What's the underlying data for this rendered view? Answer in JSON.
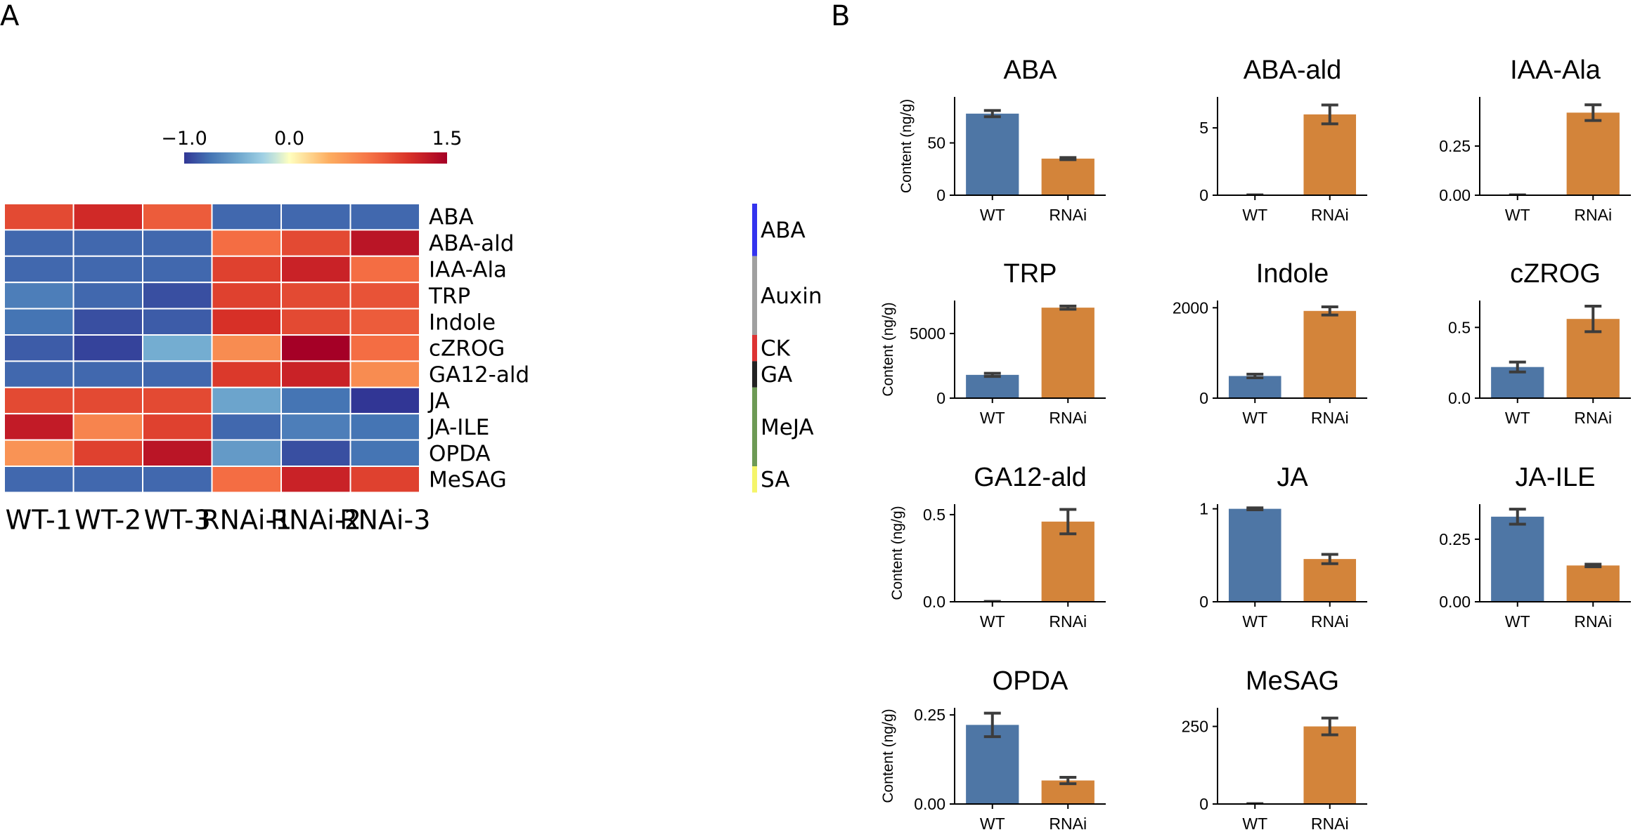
{
  "panels": {
    "a": "A",
    "b": "B"
  },
  "colors": {
    "wt": "#4e76a5",
    "rnai": "#d3843a",
    "err": "#3c3c3c"
  },
  "chart_data": [
    {
      "type": "heatmap",
      "columns": [
        "WT-1",
        "WT-2",
        "WT-3",
        "RNAi-1",
        "RNAi-2",
        "RNAi-3"
      ],
      "rows": [
        "ABA",
        "ABA-ald",
        "IAA-Ala",
        "TRP",
        "Indole",
        "cZROG",
        "GA12-ald",
        "JA",
        "JA-ILE",
        "OPDA",
        "MeSAG"
      ],
      "values": [
        [
          1.0,
          1.2,
          0.9,
          -0.8,
          -0.8,
          -0.8
        ],
        [
          -0.8,
          -0.8,
          -0.8,
          0.8,
          1.0,
          1.35
        ],
        [
          -0.8,
          -0.8,
          -0.8,
          1.05,
          1.25,
          0.8
        ],
        [
          -0.7,
          -0.8,
          -0.9,
          1.05,
          1.0,
          0.95
        ],
        [
          -0.75,
          -0.9,
          -0.85,
          1.15,
          1.0,
          0.9
        ],
        [
          -0.85,
          -0.95,
          -0.45,
          0.6,
          1.5,
          0.8
        ],
        [
          -0.8,
          -0.8,
          -0.8,
          1.1,
          1.25,
          0.6
        ],
        [
          1.0,
          1.0,
          1.0,
          -0.5,
          -0.75,
          -1.0
        ],
        [
          1.3,
          0.65,
          1.05,
          -0.8,
          -0.7,
          -0.75
        ],
        [
          0.55,
          1.05,
          1.35,
          -0.55,
          -0.9,
          -0.75
        ],
        [
          -0.8,
          -0.8,
          -0.8,
          0.8,
          1.25,
          1.05
        ]
      ],
      "colorbar": {
        "vmin": -1.0,
        "vmax": 1.5,
        "ticks": [
          "−1.0",
          "0.0",
          "1.5"
        ],
        "tick_values": [
          -1.0,
          0.0,
          1.5
        ],
        "colormap": "RdYlBu_r"
      },
      "groups": [
        {
          "name": "ABA",
          "rows": [
            0,
            1
          ],
          "color": "#3333ee"
        },
        {
          "name": "Auxin",
          "rows": [
            2,
            4
          ],
          "color": "#a0a0a0"
        },
        {
          "name": "CK",
          "rows": [
            5,
            5
          ],
          "color": "#dd3333"
        },
        {
          "name": "GA",
          "rows": [
            6,
            6
          ],
          "color": "#222222"
        },
        {
          "name": "MeJA",
          "rows": [
            7,
            9
          ],
          "color": "#6d9a55"
        },
        {
          "name": "SA",
          "rows": [
            10,
            10
          ],
          "color": "#f5f56a"
        }
      ]
    },
    {
      "type": "bar",
      "categories": [
        "WT",
        "RNAi"
      ],
      "ylabel": "Content (ng/g)",
      "subplots": [
        {
          "title": "ABA",
          "values": [
            78,
            35
          ],
          "errors": [
            3,
            1
          ],
          "ylim": [
            0,
            94
          ],
          "ticks": [
            {
              "v": 0,
              "l": "0"
            },
            {
              "v": 50,
              "l": "50"
            }
          ],
          "show_ylabel": true
        },
        {
          "title": "ABA-ald",
          "values": [
            0,
            6.0
          ],
          "errors": [
            0,
            0.7
          ],
          "ylim": [
            0,
            7.3
          ],
          "ticks": [
            {
              "v": 0,
              "l": "0"
            },
            {
              "v": 5,
              "l": "5"
            }
          ],
          "show_ylabel": false
        },
        {
          "title": "IAA-Ala",
          "values": [
            0,
            0.42
          ],
          "errors": [
            0,
            0.04
          ],
          "ylim": [
            0,
            0.5
          ],
          "ticks": [
            {
              "v": 0,
              "l": "0.00"
            },
            {
              "v": 0.25,
              "l": "0.25"
            }
          ],
          "show_ylabel": false
        },
        {
          "title": "TRP",
          "values": [
            1800,
            7000
          ],
          "errors": [
            120,
            120
          ],
          "ylim": [
            0,
            7550
          ],
          "ticks": [
            {
              "v": 0,
              "l": "0"
            },
            {
              "v": 5000,
              "l": "5000"
            }
          ],
          "show_ylabel": true
        },
        {
          "title": "Indole",
          "values": [
            490,
            1930
          ],
          "errors": [
            40,
            90
          ],
          "ylim": [
            0,
            2160
          ],
          "ticks": [
            {
              "v": 0,
              "l": "0"
            },
            {
              "v": 2000,
              "l": "2000"
            }
          ],
          "show_ylabel": false
        },
        {
          "title": "cZROG",
          "values": [
            0.22,
            0.56
          ],
          "errors": [
            0.035,
            0.09
          ],
          "ylim": [
            0,
            0.69
          ],
          "ticks": [
            {
              "v": 0,
              "l": "0.0"
            },
            {
              "v": 0.5,
              "l": "0.5"
            }
          ],
          "show_ylabel": false
        },
        {
          "title": "GA12-ald",
          "values": [
            0,
            0.46
          ],
          "errors": [
            0,
            0.07
          ],
          "ylim": [
            0,
            0.56
          ],
          "ticks": [
            {
              "v": 0,
              "l": "0.0"
            },
            {
              "v": 0.5,
              "l": "0.5"
            }
          ],
          "show_ylabel": true
        },
        {
          "title": "JA",
          "values": [
            1.0,
            0.46
          ],
          "errors": [
            0.01,
            0.05
          ],
          "ylim": [
            0,
            1.05
          ],
          "ticks": [
            {
              "v": 0,
              "l": "0"
            },
            {
              "v": 1,
              "l": "1"
            }
          ],
          "show_ylabel": false
        },
        {
          "title": "JA-ILE",
          "values": [
            0.34,
            0.145
          ],
          "errors": [
            0.03,
            0.005
          ],
          "ylim": [
            0,
            0.39
          ],
          "ticks": [
            {
              "v": 0,
              "l": "0.00"
            },
            {
              "v": 0.25,
              "l": "0.25"
            }
          ],
          "show_ylabel": false
        },
        {
          "title": "OPDA",
          "values": [
            0.222,
            0.066
          ],
          "errors": [
            0.033,
            0.009
          ],
          "ylim": [
            0,
            0.27
          ],
          "ticks": [
            {
              "v": 0,
              "l": "0.00"
            },
            {
              "v": 0.25,
              "l": "0.25"
            }
          ],
          "show_ylabel": true
        },
        {
          "title": "MeSAG",
          "values": [
            0,
            250
          ],
          "errors": [
            0,
            27
          ],
          "ylim": [
            0,
            310
          ],
          "ticks": [
            {
              "v": 0,
              "l": "0"
            },
            {
              "v": 250,
              "l": "250"
            }
          ],
          "show_ylabel": false
        }
      ]
    }
  ]
}
